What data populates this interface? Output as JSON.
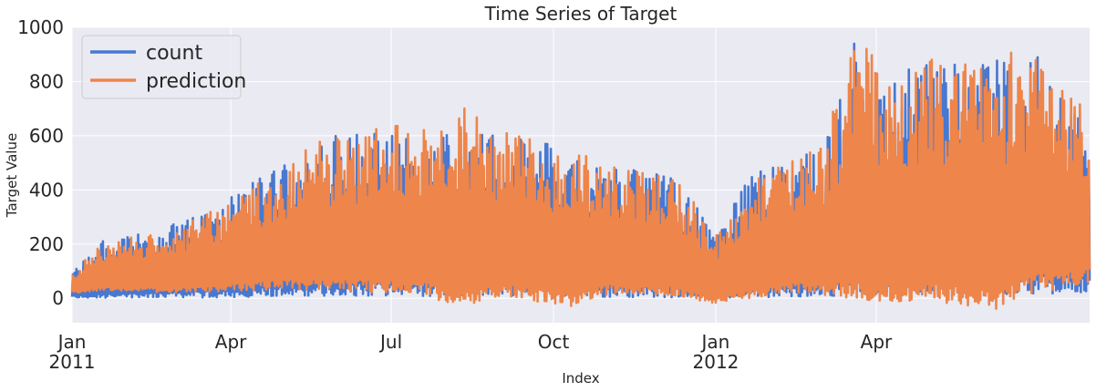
{
  "chart_data": {
    "type": "line",
    "title": "Time Series of Target",
    "xlabel": "Index",
    "ylabel": "Target Value",
    "x_range": [
      "2011-01-01",
      "2012-07-31"
    ],
    "ylim": [
      -90,
      1000
    ],
    "y_ticks": [
      "0",
      "200",
      "400",
      "600",
      "800",
      "1000"
    ],
    "x_ticks": [
      {
        "date": "2011-01-01",
        "label": "Jan",
        "sublabel": "2011"
      },
      {
        "date": "2011-04-01",
        "label": "Apr",
        "sublabel": ""
      },
      {
        "date": "2011-07-01",
        "label": "Jul",
        "sublabel": ""
      },
      {
        "date": "2011-10-01",
        "label": "Oct",
        "sublabel": ""
      },
      {
        "date": "2012-01-01",
        "label": "Jan",
        "sublabel": "2012"
      },
      {
        "date": "2012-04-01",
        "label": "Apr",
        "sublabel": ""
      }
    ],
    "grid": true,
    "background": "#eaeaf2",
    "legend_position": "top-left",
    "series": [
      {
        "name": "count",
        "color": "#4878d0",
        "dates": [
          "2011-01-01",
          "2011-01-20",
          "2011-02-10",
          "2011-03-01",
          "2011-03-20",
          "2011-04-10",
          "2011-05-01",
          "2011-05-20",
          "2011-06-10",
          "2011-07-01",
          "2011-07-20",
          "2011-08-10",
          "2011-09-01",
          "2011-09-20",
          "2011-10-10",
          "2011-11-01",
          "2011-11-20",
          "2011-12-10",
          "2012-01-01",
          "2012-01-20",
          "2012-02-10",
          "2012-03-01",
          "2012-03-20",
          "2012-04-10",
          "2012-05-01",
          "2012-05-20",
          "2012-06-10",
          "2012-07-01",
          "2012-07-31"
        ],
        "daily_max": [
          100,
          220,
          240,
          280,
          330,
          420,
          500,
          590,
          610,
          620,
          600,
          610,
          600,
          580,
          560,
          480,
          480,
          460,
          240,
          460,
          500,
          560,
          950,
          840,
          880,
          870,
          890,
          900,
          700
        ],
        "daily_min": [
          2,
          2,
          2,
          2,
          3,
          5,
          8,
          10,
          10,
          10,
          8,
          10,
          8,
          10,
          8,
          5,
          5,
          3,
          2,
          3,
          5,
          8,
          10,
          10,
          12,
          10,
          15,
          15,
          20
        ]
      },
      {
        "name": "prediction",
        "color": "#ee854a",
        "dates": [
          "2011-01-01",
          "2011-01-20",
          "2011-02-10",
          "2011-03-01",
          "2011-03-20",
          "2011-04-10",
          "2011-05-01",
          "2011-05-20",
          "2011-06-10",
          "2011-07-01",
          "2011-07-20",
          "2011-08-10",
          "2011-09-01",
          "2011-09-20",
          "2011-10-10",
          "2011-11-01",
          "2011-11-20",
          "2011-12-10",
          "2012-01-01",
          "2012-01-20",
          "2012-02-10",
          "2012-03-01",
          "2012-03-20",
          "2012-04-10",
          "2012-05-01",
          "2012-05-20",
          "2012-06-10",
          "2012-07-01",
          "2012-07-31"
        ],
        "daily_max": [
          100,
          215,
          235,
          270,
          320,
          410,
          490,
          580,
          600,
          650,
          620,
          720,
          620,
          600,
          560,
          500,
          470,
          450,
          230,
          450,
          500,
          560,
          960,
          850,
          890,
          860,
          900,
          960,
          700
        ],
        "daily_min": [
          20,
          30,
          25,
          20,
          25,
          30,
          35,
          30,
          25,
          20,
          15,
          -40,
          10,
          -10,
          -30,
          15,
          20,
          10,
          -20,
          0,
          20,
          15,
          -10,
          -20,
          -5,
          -30,
          -40,
          20,
          60
        ]
      }
    ]
  }
}
